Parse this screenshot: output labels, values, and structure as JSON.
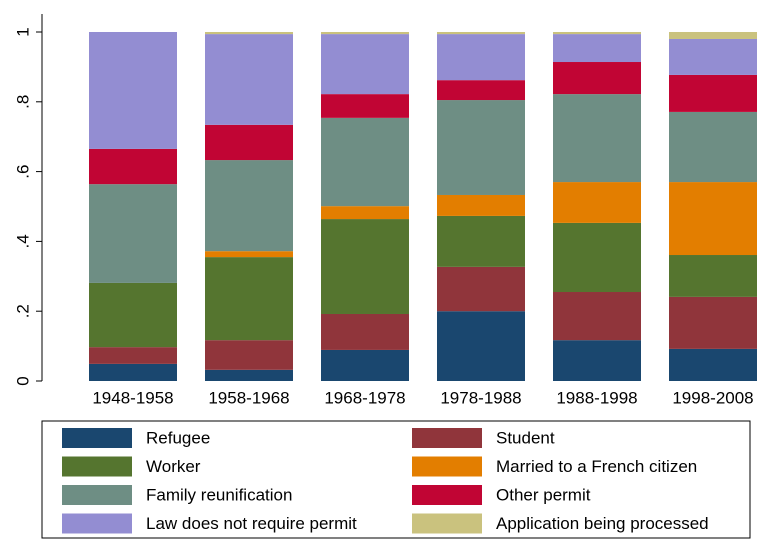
{
  "chart_data": {
    "type": "bar",
    "stacked": true,
    "categories": [
      "1948-1958",
      "1958-1968",
      "1968-1978",
      "1978-1988",
      "1988-1998",
      "1998-2008"
    ],
    "series": [
      {
        "name": "Refugee",
        "color": "#1a476f",
        "values": [
          0.049,
          0.032,
          0.089,
          0.2,
          0.117,
          0.092
        ]
      },
      {
        "name": "Student",
        "color": "#90353b",
        "values": [
          0.048,
          0.085,
          0.103,
          0.127,
          0.138,
          0.149
        ]
      },
      {
        "name": "Worker",
        "color": "#55752f",
        "values": [
          0.184,
          0.238,
          0.272,
          0.146,
          0.198,
          0.12
        ]
      },
      {
        "name": "Married to a French citizen",
        "color": "#e37e00",
        "values": [
          0,
          0.017,
          0.037,
          0.06,
          0.117,
          0.209
        ]
      },
      {
        "name": "Family reunification",
        "color": "#6e8e84",
        "values": [
          0.283,
          0.261,
          0.253,
          0.272,
          0.252,
          0.201
        ]
      },
      {
        "name": "Other permit",
        "color": "#c10534",
        "values": [
          0.101,
          0.101,
          0.068,
          0.057,
          0.092,
          0.106
        ]
      },
      {
        "name": "Law does not require permit",
        "color": "#938dd2",
        "values": [
          0.335,
          0.26,
          0.172,
          0.132,
          0.08,
          0.103
        ]
      },
      {
        "name": "Application being processed",
        "color": "#cac27e",
        "values": [
          0,
          0.006,
          0.006,
          0.006,
          0.006,
          0.02
        ]
      }
    ],
    "ylim": [
      0,
      1
    ],
    "yticks": [
      0,
      {
        "value": 0.2,
        "label": ".2"
      },
      {
        "value": 0.4,
        "label": ".4"
      },
      {
        "value": 0.6,
        "label": ".6"
      },
      {
        "value": 0.8,
        "label": ".8"
      },
      1
    ],
    "grid": false,
    "legend": "bottom"
  }
}
